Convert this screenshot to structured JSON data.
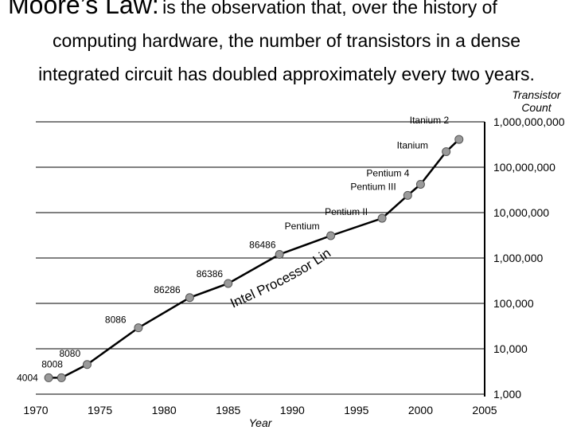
{
  "heading": {
    "term": "Moore’s Law:",
    "line1": "is the observation that, over the history of",
    "line2": "computing hardware, the number of transistors in a dense",
    "line3": "integrated circuit has doubled approximately every two years."
  },
  "chart_data": {
    "type": "line",
    "xlabel": "Year",
    "ylabel_line1": "Transistor",
    "ylabel_line2": "Count",
    "y_scale": "log",
    "xlim": [
      1970,
      2005
    ],
    "ylim": [
      1000,
      1000000000
    ],
    "x_ticks": [
      1970,
      1975,
      1980,
      1985,
      1990,
      1995,
      2000,
      2005
    ],
    "x_tick_labels": [
      "1970",
      "1975",
      "1980",
      "1985",
      "1990",
      "1995",
      "2000",
      "2005"
    ],
    "y_ticks": [
      1000,
      10000,
      100000,
      1000000,
      10000000,
      100000000,
      1000000000
    ],
    "y_tick_labels": [
      "1,000",
      "10,000",
      "100,000",
      "1,000,000",
      "10,000,000",
      "100,000,000",
      "1,000,000,000"
    ],
    "grid": true,
    "curve_label": "Intel Processor Line",
    "points": [
      {
        "label": "4004",
        "x": 1971,
        "y": 2300
      },
      {
        "label": "8008",
        "x": 1972,
        "y": 2300
      },
      {
        "label": "8080",
        "x": 1974,
        "y": 4500
      },
      {
        "label": "8086",
        "x": 1978,
        "y": 29000
      },
      {
        "label": "86286",
        "x": 1982,
        "y": 134000
      },
      {
        "label": "86386",
        "x": 1985,
        "y": 275000
      },
      {
        "label": "86486",
        "x": 1989,
        "y": 1200000
      },
      {
        "label": "Pentium",
        "x": 1993,
        "y": 3100000
      },
      {
        "label": "Pentium II",
        "x": 1997,
        "y": 7500000
      },
      {
        "label": "Pentium III",
        "x": 1999,
        "y": 24000000
      },
      {
        "label": "Pentium 4",
        "x": 2000,
        "y": 42000000
      },
      {
        "label": "Itanium",
        "x": 2002,
        "y": 220000000
      },
      {
        "label": "Itanium 2",
        "x": 2003,
        "y": 410000000
      }
    ]
  }
}
